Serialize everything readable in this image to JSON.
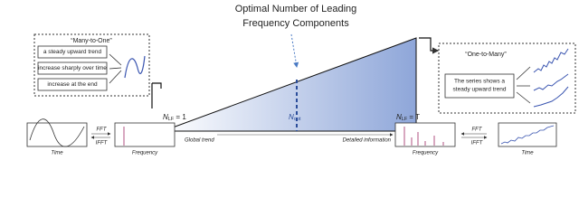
{
  "title": [
    "Optimal Number of Leading",
    "Frequency Components"
  ],
  "left_box": {
    "title": "“Many-to-One”",
    "items": [
      "a steady upward trend",
      "increase sharply over time",
      "increase at the end"
    ]
  },
  "right_box": {
    "title": "“One-to-Many”",
    "text": [
      "The series shows a",
      "steady upward trend"
    ]
  },
  "markers": [
    {
      "symbol": "N",
      "subscript": "LF",
      "rest": " = 1"
    },
    {
      "symbol": "N",
      "subscript": "opt"
    },
    {
      "symbol": "N",
      "subscript": "LF",
      "rest": " = T"
    }
  ],
  "bottom": {
    "left_time": "Time",
    "left_fft": "FFT",
    "left_ifft": "IFFT",
    "left_frequency": "Frequency",
    "global_trend": "Global trend",
    "detailed_information": "Detailed information",
    "right_frequency": "Frequency",
    "right_fft": "FFT",
    "right_ifft": "IFFT",
    "right_time": "Time"
  }
}
